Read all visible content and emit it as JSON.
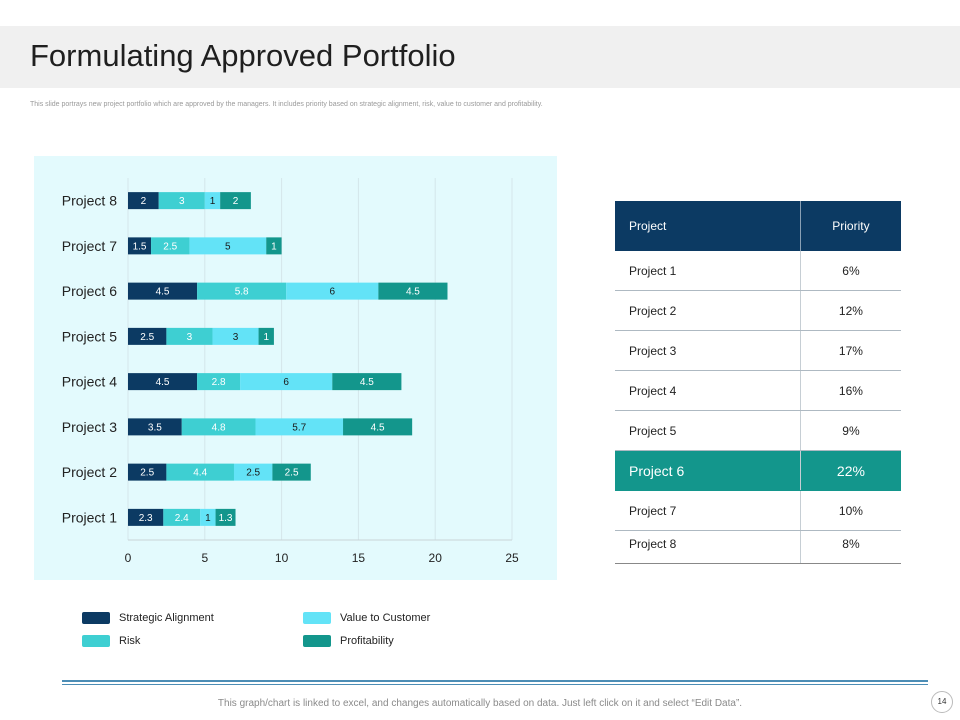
{
  "slide": {
    "title": "Formulating Approved Portfolio",
    "subtitle": "This slide portrays new project portfolio which are approved by the managers. It includes priority based on strategic alignment, risk, value to customer and profitability.",
    "footer_note": "This graph/chart is linked to excel, and changes automatically based on data. Just left click on it and select “Edit Data”.",
    "page_number": "14"
  },
  "chart_data": {
    "type": "bar",
    "orientation": "horizontal",
    "stacked": true,
    "title": "",
    "xlabel": "",
    "ylabel": "",
    "categories": [
      "Project 1",
      "Project 2",
      "Project 3",
      "Project 4",
      "Project 5",
      "Project 6",
      "Project 7",
      "Project 8"
    ],
    "series": [
      {
        "name": "Strategic Alignment",
        "color": "#0c3a63",
        "label_color": "#ffffff",
        "values": [
          2.3,
          2.5,
          3.5,
          4.5,
          2.5,
          4.5,
          1.5,
          2
        ]
      },
      {
        "name": "Risk",
        "color": "#3ecfd2",
        "label_color": "#ffffff",
        "values": [
          2.4,
          4.4,
          4.8,
          2.8,
          3,
          5.8,
          2.5,
          3
        ]
      },
      {
        "name": "Value to Customer",
        "color": "#63e3f7",
        "label_color": "#1a1a1a",
        "values": [
          1,
          2.5,
          5.7,
          6,
          3,
          6,
          5,
          1
        ]
      },
      {
        "name": "Profitability",
        "color": "#13968c",
        "label_color": "#ffffff",
        "values": [
          1.3,
          2.5,
          4.5,
          4.5,
          1,
          4.5,
          1,
          2
        ]
      }
    ],
    "xlim": [
      0,
      25
    ],
    "xticks": [
      0,
      5,
      10,
      15,
      20,
      25
    ],
    "grid": true,
    "legend": "bottom"
  },
  "priority_table": {
    "headers": [
      "Project",
      "Priority"
    ],
    "rows": [
      {
        "project": "Project 1",
        "priority": "6%"
      },
      {
        "project": "Project 2",
        "priority": "12%"
      },
      {
        "project": "Project 3",
        "priority": "17%"
      },
      {
        "project": "Project 4",
        "priority": "16%"
      },
      {
        "project": "Project 5",
        "priority": "9%"
      },
      {
        "project": "Project 6",
        "priority": "22%"
      },
      {
        "project": "Project 7",
        "priority": "10%"
      },
      {
        "project": "Project 8",
        "priority": "8%"
      }
    ],
    "highlight_row": "Project 6",
    "header_color": "#0c3a63",
    "highlight_color": "#13968c"
  }
}
